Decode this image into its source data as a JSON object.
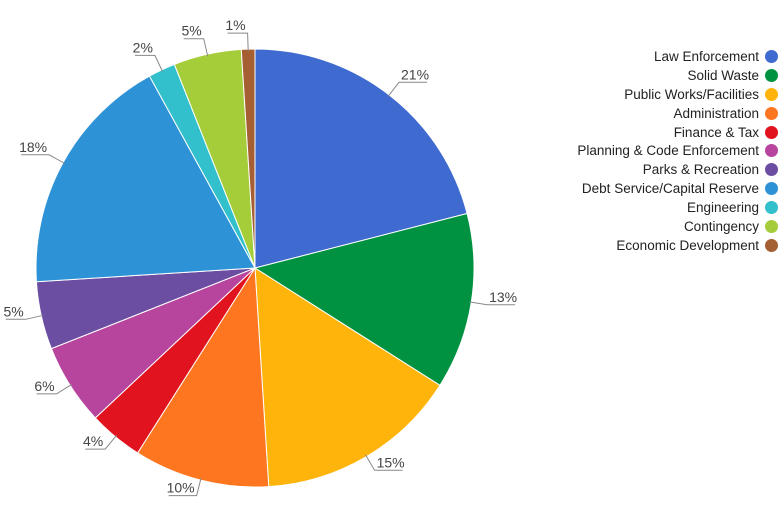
{
  "chart_data": {
    "type": "pie",
    "title": "",
    "start_angle_deg": 0,
    "direction": "clockwise",
    "slices": [
      {
        "label": "Law Enforcement",
        "value": 21,
        "display": "21%",
        "color": "#3F6ACF"
      },
      {
        "label": "Solid Waste",
        "value": 13,
        "display": "13%",
        "color": "#009240"
      },
      {
        "label": "Public Works/Facilities",
        "value": 15,
        "display": "15%",
        "color": "#FEB40A"
      },
      {
        "label": "Administration",
        "value": 10,
        "display": "10%",
        "color": "#FE7620"
      },
      {
        "label": "Finance & Tax",
        "value": 4,
        "display": "4%",
        "color": "#E1131E"
      },
      {
        "label": "Planning & Code Enforcement",
        "value": 6,
        "display": "6%",
        "color": "#B7459E"
      },
      {
        "label": "Parks & Recreation",
        "value": 5,
        "display": "5%",
        "color": "#6B4EA2"
      },
      {
        "label": "Debt Service/Capital Reserve",
        "value": 18,
        "display": "18%",
        "color": "#2E93D6"
      },
      {
        "label": "Engineering",
        "value": 2,
        "display": "2%",
        "color": "#32C0CC"
      },
      {
        "label": "Contingency",
        "value": 5,
        "display": "5%",
        "color": "#A5CD39"
      },
      {
        "label": "Economic Development",
        "value": 1,
        "display": "1%",
        "color": "#A65F33"
      }
    ],
    "legend_position": "right"
  }
}
